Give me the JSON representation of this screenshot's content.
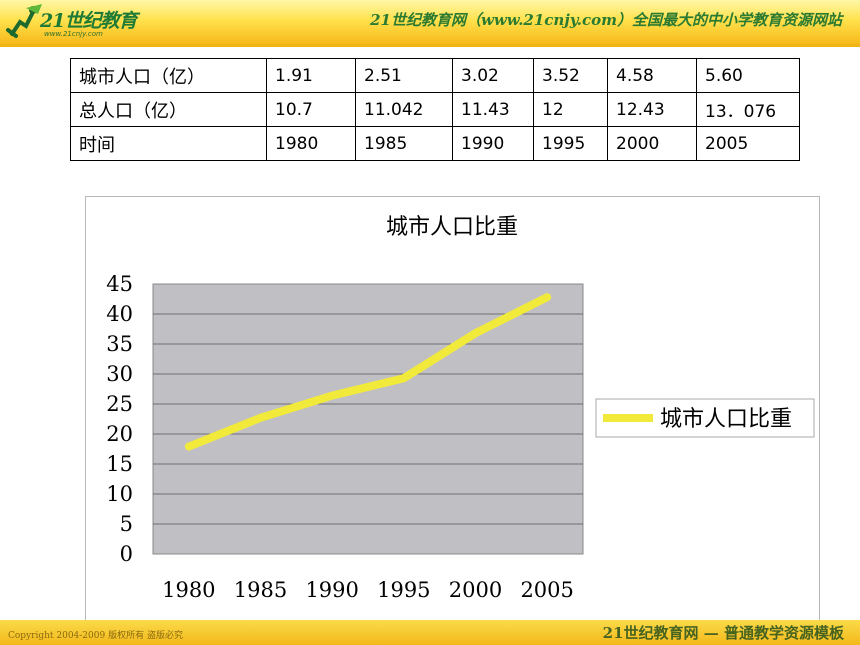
{
  "header": {
    "logo_text": "21世纪教育",
    "logo_url": "www.21cnjy.com",
    "title": "21世纪教育网（www.21cnjy.com）全国最大的中小学教育资源网站"
  },
  "table": {
    "rows": [
      {
        "label": "城市人口（亿）",
        "values": [
          "1.91",
          "2.51",
          "3.02",
          "3.52",
          "4.58",
          "5.60"
        ]
      },
      {
        "label": "总人口（亿）",
        "values": [
          "10.7",
          "11.042",
          "11.43",
          "12",
          "12.43",
          "13．076"
        ]
      },
      {
        "label": "时间",
        "values": [
          "1980",
          "1985",
          "1990",
          "1995",
          "2000",
          "2005"
        ]
      }
    ]
  },
  "footer": {
    "copyright": "Copyright 2004-2009 版权所有 盗版必究",
    "brand": "21世纪教育网 — 普通教学资源模板"
  },
  "chart_data": {
    "type": "line",
    "title": "城市人口比重",
    "categories": [
      "1980",
      "1985",
      "1990",
      "1995",
      "2000",
      "2005"
    ],
    "series": [
      {
        "name": "城市人口比重",
        "values": [
          17.9,
          22.7,
          26.4,
          29.3,
          36.8,
          42.8
        ],
        "color": "#f2ea3a"
      }
    ],
    "y_ticks": [
      "0",
      "5",
      "10",
      "15",
      "20",
      "25",
      "30",
      "35",
      "40",
      "45"
    ],
    "ylim": [
      0,
      45
    ],
    "grid": true,
    "plot_background": "#c0c0c4",
    "legend_position": "right"
  }
}
